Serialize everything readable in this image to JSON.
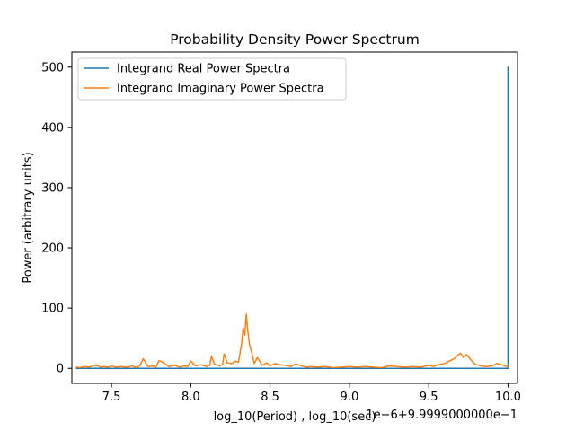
{
  "chart_data": {
    "type": "line",
    "title": "Probability Density Power Spectrum",
    "xlabel": "log_10(Period) , log_10(sec)",
    "ylabel": "Power (arbitrary units)",
    "offset_text": "1e−6+9.9999000000e−1",
    "xlim": [
      7.25,
      10.06
    ],
    "ylim": [
      -25,
      525
    ],
    "x_ticks": [
      7.5,
      8.0,
      8.5,
      9.0,
      9.5,
      10.0
    ],
    "x_tick_labels": [
      "7.5",
      "8.0",
      "8.5",
      "9.0",
      "9.5",
      "10.0"
    ],
    "y_ticks": [
      0,
      100,
      200,
      300,
      400,
      500
    ],
    "y_tick_labels": [
      "0",
      "100",
      "200",
      "300",
      "400",
      "500"
    ],
    "legend_position": "top-left",
    "grid": false,
    "series": [
      {
        "name": "Integrand Real Power Spectra",
        "color": "#1f77b4",
        "x": [
          7.28,
          9.98,
          9.985,
          9.99,
          9.995,
          10.0,
          10.0,
          10.0
        ],
        "y": [
          0,
          0,
          0,
          0,
          0,
          0,
          500,
          0
        ]
      },
      {
        "name": "Integrand Imaginary Power Spectra",
        "color": "#ff7f0e",
        "x": [
          7.28,
          7.3,
          7.33,
          7.36,
          7.4,
          7.43,
          7.45,
          7.48,
          7.5,
          7.53,
          7.56,
          7.6,
          7.63,
          7.66,
          7.68,
          7.7,
          7.73,
          7.76,
          7.78,
          7.8,
          7.83,
          7.86,
          7.9,
          7.93,
          7.96,
          7.98,
          8.0,
          8.03,
          8.06,
          8.1,
          8.12,
          8.13,
          8.15,
          8.18,
          8.2,
          8.21,
          8.23,
          8.26,
          8.28,
          8.3,
          8.32,
          8.33,
          8.34,
          8.35,
          8.36,
          8.37,
          8.38,
          8.4,
          8.42,
          8.45,
          8.48,
          8.5,
          8.53,
          8.56,
          8.6,
          8.63,
          8.66,
          8.7,
          8.73,
          8.76,
          8.8,
          8.85,
          8.9,
          8.95,
          9.0,
          9.05,
          9.1,
          9.15,
          9.2,
          9.25,
          9.3,
          9.35,
          9.4,
          9.45,
          9.5,
          9.53,
          9.56,
          9.6,
          9.63,
          9.66,
          9.68,
          9.7,
          9.72,
          9.74,
          9.76,
          9.78,
          9.8,
          9.83,
          9.86,
          9.9,
          9.93,
          9.96,
          9.98,
          10.0
        ],
        "y": [
          2,
          1,
          3,
          2,
          6,
          2,
          3,
          2,
          4,
          2,
          3,
          2,
          4,
          1,
          5,
          16,
          3,
          4,
          2,
          13,
          9,
          3,
          5,
          2,
          4,
          3,
          12,
          4,
          6,
          3,
          5,
          20,
          7,
          4,
          6,
          24,
          9,
          8,
          12,
          10,
          40,
          67,
          55,
          90,
          60,
          40,
          30,
          8,
          18,
          5,
          9,
          4,
          8,
          6,
          5,
          3,
          7,
          4,
          2,
          3,
          2,
          3,
          1,
          2,
          3,
          2,
          3,
          2,
          1,
          4,
          3,
          2,
          3,
          2,
          5,
          3,
          6,
          8,
          12,
          16,
          21,
          25,
          18,
          23,
          16,
          10,
          6,
          4,
          3,
          4,
          8,
          6,
          4,
          2
        ]
      }
    ]
  }
}
